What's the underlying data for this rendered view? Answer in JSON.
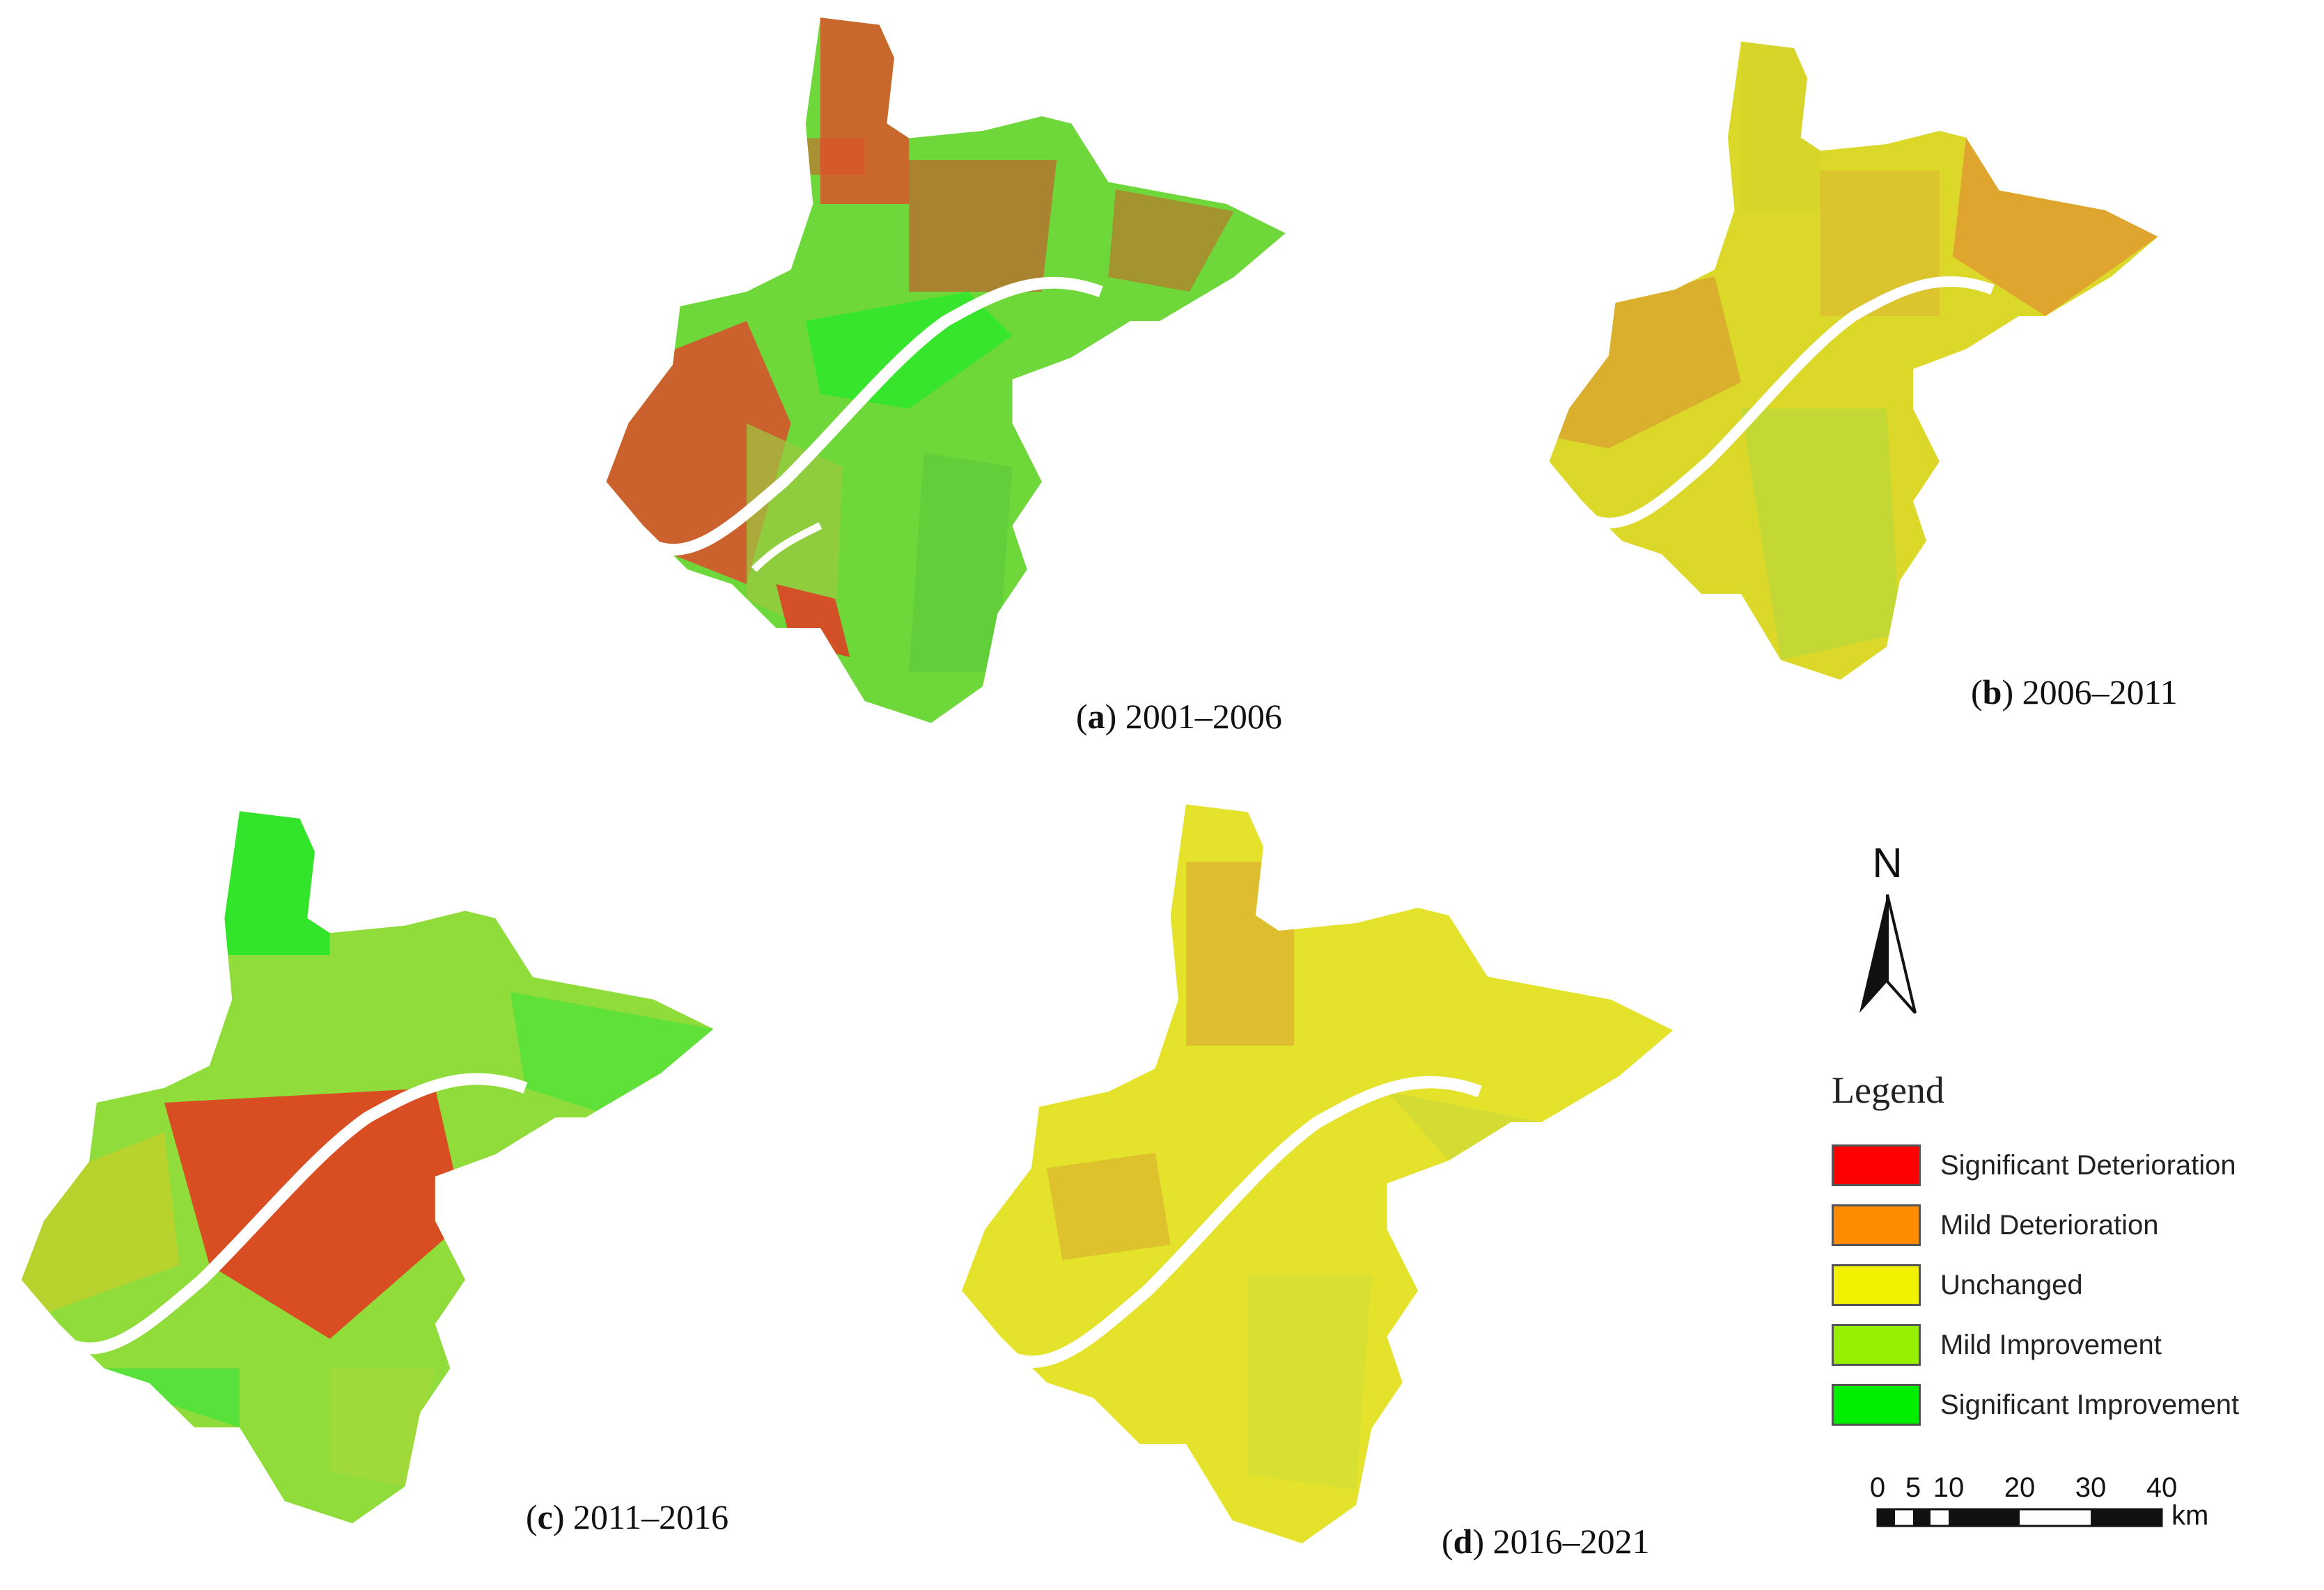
{
  "panels": [
    {
      "letter": "a",
      "period": "2001–2006",
      "dominant": "mixed-green-red"
    },
    {
      "letter": "b",
      "period": "2006–2011",
      "dominant": "yellow-orange"
    },
    {
      "letter": "c",
      "period": "2011–2016",
      "dominant": "green-with-red-center"
    },
    {
      "letter": "d",
      "period": "2016–2021",
      "dominant": "yellow"
    }
  ],
  "north_arrow": {
    "label": "N"
  },
  "legend": {
    "title": "Legend",
    "items": [
      {
        "label": "Significant Deterioration",
        "color": "#ff0000"
      },
      {
        "label": "Mild Deterioration",
        "color": "#ff8c00"
      },
      {
        "label": "Unchanged",
        "color": "#f2f200"
      },
      {
        "label": "Mild Improvement",
        "color": "#96f000"
      },
      {
        "label": "Significant Improvement",
        "color": "#00ee00"
      }
    ]
  },
  "scale_bar": {
    "ticks": [
      "0",
      "5",
      "10",
      "20",
      "30",
      "40"
    ],
    "unit": "km"
  },
  "colors": {
    "river": "#ffffff",
    "background": "#ffffff"
  }
}
